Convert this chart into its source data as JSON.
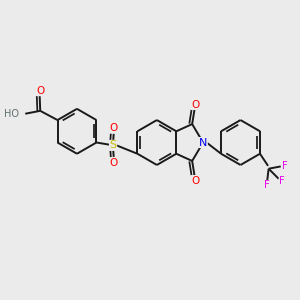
{
  "background_color": "#ebebeb",
  "bond_color": "#1a1a1a",
  "figsize": [
    3.0,
    3.0
  ],
  "dpi": 100,
  "atom_colors": {
    "O": "#ff0000",
    "N": "#0000ee",
    "S": "#ccbb00",
    "F": "#ee00ee",
    "H": "#607070",
    "C": "#1a1a1a"
  }
}
